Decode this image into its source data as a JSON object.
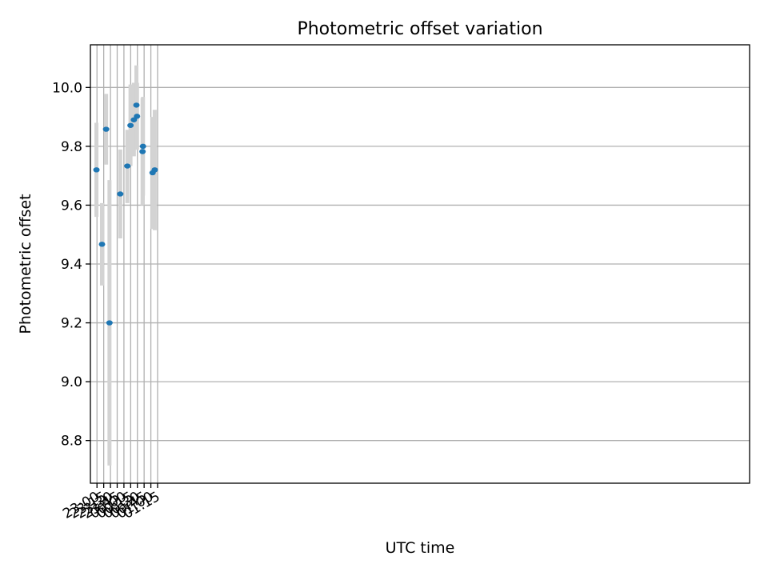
{
  "chart_data": {
    "type": "scatter",
    "title": "Photometric offset variation",
    "xlabel": "UTC time",
    "ylabel": "Photometric offset",
    "x_unit": "UTC time (HH:MM)",
    "xlim": [
      "22:45:20",
      "23:13:40+1d"
    ],
    "ylim": [
      8.655,
      10.145
    ],
    "xticks": [
      "23:00",
      "23:15",
      "23:30",
      "23:45",
      "00:00",
      "00:15",
      "00:30",
      "00:45",
      "01:00",
      "01:15"
    ],
    "yticks": [
      "8.8",
      "9.0",
      "9.2",
      "9.4",
      "9.6",
      "9.8",
      "10.0"
    ],
    "grid": true,
    "legend": "none",
    "series": [
      {
        "points": [
          {
            "x": "22:58:50",
            "y": 9.72,
            "ylow": 9.56,
            "yhigh": 9.88
          },
          {
            "x": "23:11:10",
            "y": 9.467,
            "ylow": 9.327,
            "yhigh": 9.607
          },
          {
            "x": "23:20:20",
            "y": 9.858,
            "ylow": 9.738,
            "yhigh": 9.978
          },
          {
            "x": "23:27:50",
            "y": 9.2,
            "ylow": 8.715,
            "yhigh": 9.685
          },
          {
            "x": "23:51:50",
            "y": 9.638,
            "ylow": 9.487,
            "yhigh": 9.789
          },
          {
            "x": "00:07:40",
            "y": 9.733,
            "ylow": 9.607,
            "yhigh": 9.856
          },
          {
            "x": "00:14:40",
            "y": 9.871,
            "ylow": 9.733,
            "yhigh": 10.01
          },
          {
            "x": "00:22:10",
            "y": 9.89,
            "ylow": 9.766,
            "yhigh": 10.016
          },
          {
            "x": "00:27:50",
            "y": 9.94,
            "ylow": 9.805,
            "yhigh": 10.075
          },
          {
            "x": "00:29:10",
            "y": 9.902,
            "ylow": 9.788,
            "yhigh": 10.016
          },
          {
            "x": "00:41:30",
            "y": 9.782,
            "ylow": 9.6,
            "yhigh": 9.964
          },
          {
            "x": "00:42:30",
            "y": 9.8,
            "ylow": 9.632,
            "yhigh": 9.968
          },
          {
            "x": "01:03:50",
            "y": 9.71,
            "ylow": 9.519,
            "yhigh": 9.9
          },
          {
            "x": "01:08:40",
            "y": 9.72,
            "ylow": 9.515,
            "yhigh": 9.924
          }
        ]
      }
    ]
  },
  "colors": {
    "marker": "#1f77b4",
    "errorbar": "#d3d3d3",
    "grid": "#b0b0b0",
    "axes": "#000000",
    "background": "#ffffff"
  }
}
